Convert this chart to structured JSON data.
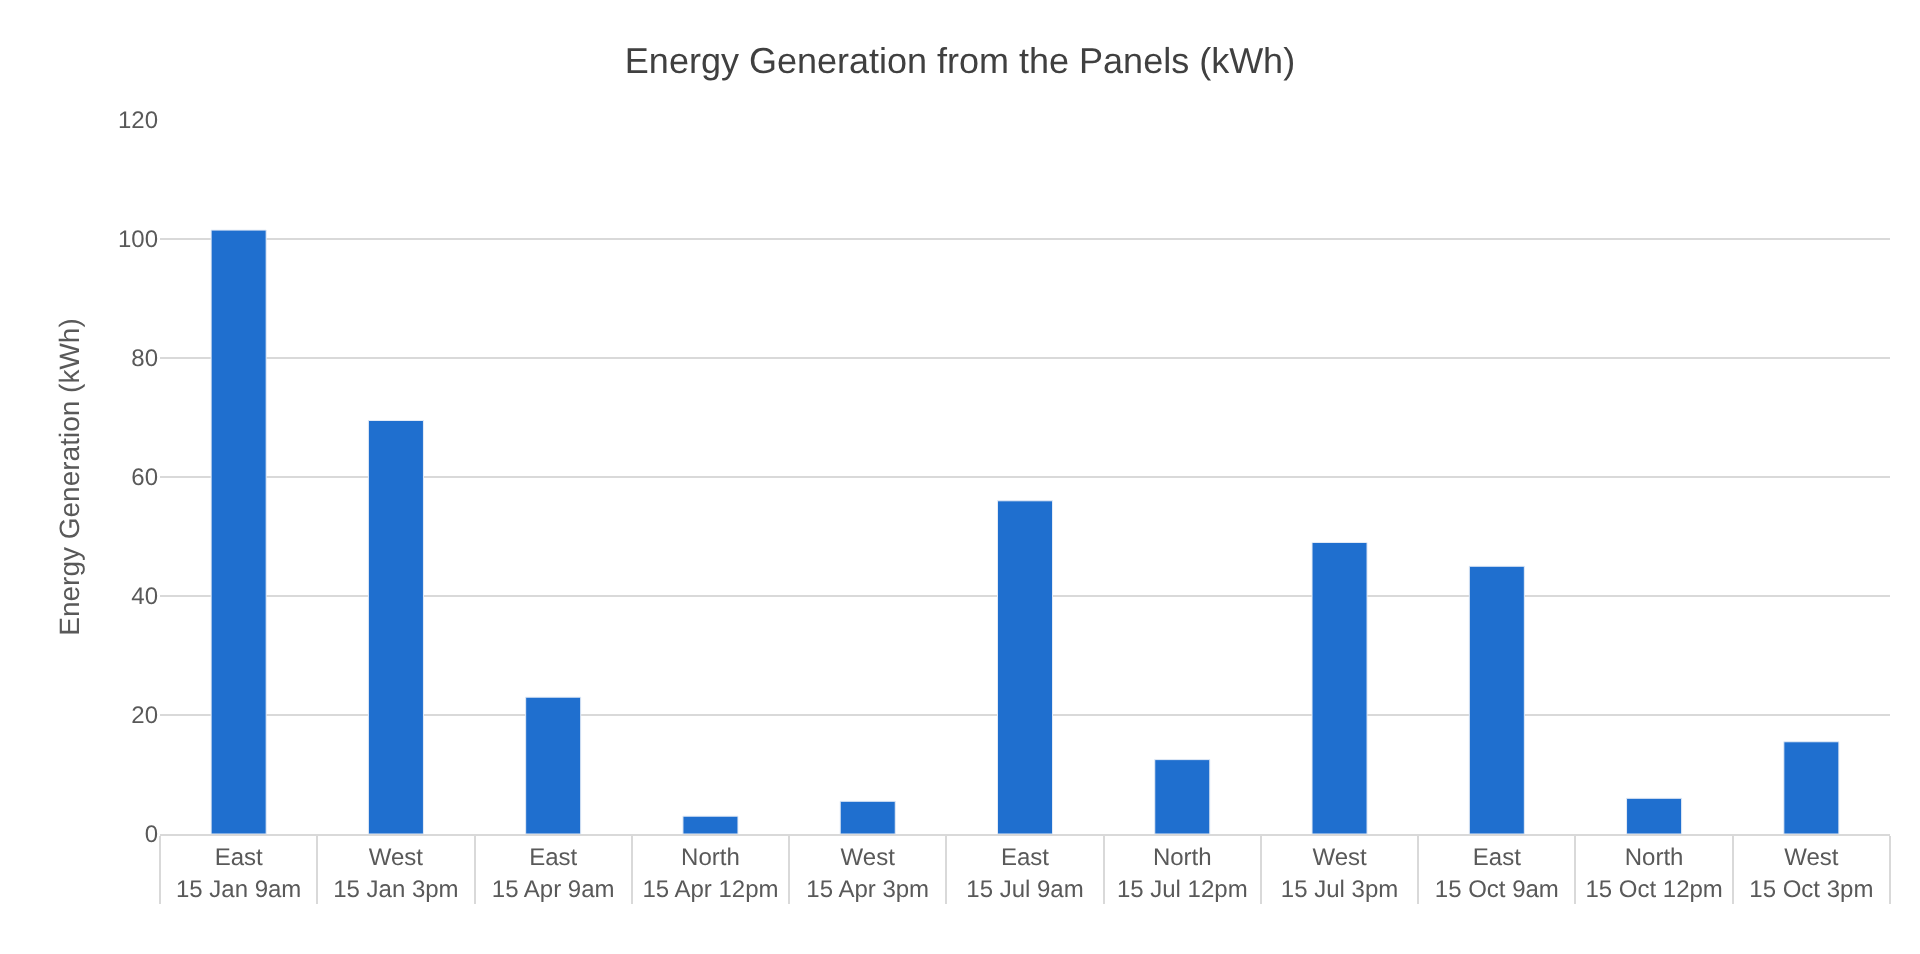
{
  "chart_data": {
    "type": "bar",
    "title": "Energy Generation from the Panels (kWh)",
    "ylabel": "Energy Generation (kWh)",
    "categories": [
      "East\n15 Jan 9am",
      "West\n15 Jan 3pm",
      "East\n15 Apr 9am",
      "North\n15 Apr 12pm",
      "West\n15 Apr 3pm",
      "East\n15 Jul 9am",
      "North\n15 Jul 12pm",
      "West\n15 Jul 3pm",
      "East\n15 Oct 9am",
      "North\n15 Oct 12pm",
      "West\n15 Oct 3pm"
    ],
    "values": [
      101.5,
      69.5,
      23,
      3,
      5.5,
      56,
      12.5,
      49,
      45,
      6,
      15.5
    ],
    "color": "#1f6fcf",
    "ylim": [
      0,
      120
    ],
    "yticks": [
      0,
      20,
      40,
      60,
      80,
      100,
      120
    ],
    "grid": "y",
    "legend": false
  }
}
